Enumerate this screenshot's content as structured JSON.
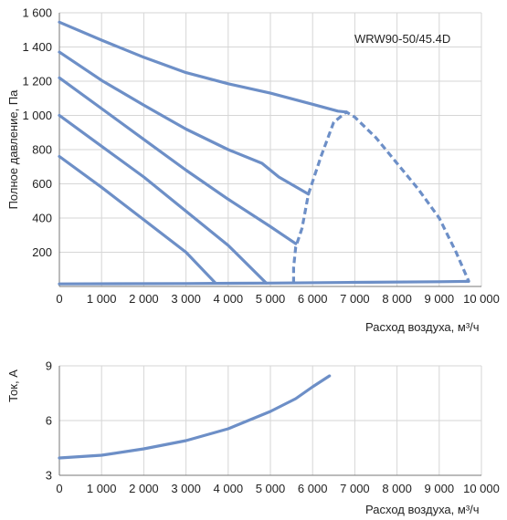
{
  "colors": {
    "curve": "#6d8fc7",
    "grid": "#d6d6d6",
    "text": "#222222"
  },
  "chart_data": [
    {
      "type": "line",
      "title": "",
      "annotation": "WRW90-50/45.4D",
      "xlabel": "Расход воздуха, м³/ч",
      "ylabel": "Полное давление, Па",
      "xlim": [
        0,
        10000
      ],
      "ylim": [
        0,
        1600
      ],
      "x_ticks": [
        "0",
        "1 000",
        "2 000",
        "3 000",
        "4 000",
        "5 000",
        "6 000",
        "7 000",
        "8 000",
        "9 000",
        "10 000"
      ],
      "y_ticks": [
        "200",
        "400",
        "600",
        "800",
        "1 000",
        "1 200",
        "1 400",
        "1 600"
      ],
      "grid": true,
      "series": [
        {
          "style": "solid",
          "points": [
            [
              0,
              1545
            ],
            [
              1000,
              1440
            ],
            [
              2000,
              1340
            ],
            [
              3000,
              1250
            ],
            [
              4000,
              1185
            ],
            [
              5000,
              1130
            ],
            [
              6000,
              1065
            ],
            [
              6600,
              1025
            ],
            [
              6800,
              1020
            ]
          ]
        },
        {
          "style": "solid",
          "points": [
            [
              0,
              1370
            ],
            [
              1000,
              1205
            ],
            [
              2000,
              1060
            ],
            [
              3000,
              920
            ],
            [
              4000,
              800
            ],
            [
              4800,
              720
            ],
            [
              5200,
              640
            ],
            [
              5900,
              540
            ]
          ]
        },
        {
          "style": "solid",
          "points": [
            [
              0,
              1220
            ],
            [
              1000,
              1040
            ],
            [
              2000,
              860
            ],
            [
              3000,
              680
            ],
            [
              4000,
              510
            ],
            [
              5000,
              350
            ],
            [
              5600,
              250
            ]
          ]
        },
        {
          "style": "solid",
          "points": [
            [
              0,
              1000
            ],
            [
              1000,
              820
            ],
            [
              2000,
              640
            ],
            [
              3000,
              440
            ],
            [
              4000,
              240
            ],
            [
              4900,
              20
            ]
          ]
        },
        {
          "style": "solid",
          "points": [
            [
              0,
              760
            ],
            [
              1000,
              580
            ],
            [
              2000,
              390
            ],
            [
              3000,
              200
            ],
            [
              3700,
              20
            ]
          ]
        },
        {
          "style": "solid",
          "points": [
            [
              0,
              15
            ],
            [
              3000,
              17
            ],
            [
              5000,
              20
            ],
            [
              7000,
              24
            ],
            [
              9000,
              28
            ],
            [
              9700,
              30
            ]
          ]
        },
        {
          "style": "dashed",
          "points": [
            [
              5550,
              20
            ],
            [
              5550,
              110
            ],
            [
              5600,
              230
            ],
            [
              5750,
              340
            ],
            [
              5900,
              540
            ],
            [
              6200,
              760
            ],
            [
              6500,
              960
            ],
            [
              6800,
              1020
            ],
            [
              7000,
              990
            ],
            [
              7500,
              870
            ],
            [
              8000,
              720
            ],
            [
              8500,
              570
            ],
            [
              9000,
              400
            ],
            [
              9400,
              200
            ],
            [
              9700,
              30
            ]
          ]
        }
      ]
    },
    {
      "type": "line",
      "title": "",
      "xlabel": "Расход воздуха, м³/ч",
      "ylabel": "Ток, А",
      "xlim": [
        0,
        10000
      ],
      "ylim": [
        3,
        9
      ],
      "x_ticks": [
        "0",
        "1 000",
        "2 000",
        "3 000",
        "4 000",
        "5 000",
        "6 000",
        "7 000",
        "8 000",
        "9 000",
        "10 000"
      ],
      "y_ticks": [
        "3",
        "6",
        "9"
      ],
      "grid": true,
      "series": [
        {
          "style": "solid",
          "points": [
            [
              0,
              3.95
            ],
            [
              1000,
              4.1
            ],
            [
              2000,
              4.45
            ],
            [
              3000,
              4.9
            ],
            [
              4000,
              5.55
            ],
            [
              5000,
              6.5
            ],
            [
              5600,
              7.2
            ],
            [
              6000,
              7.85
            ],
            [
              6400,
              8.45
            ]
          ]
        }
      ]
    }
  ]
}
